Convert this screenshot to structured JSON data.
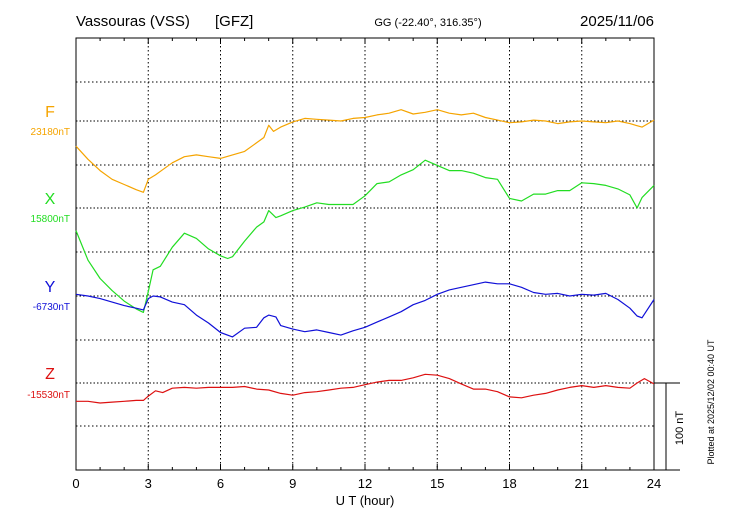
{
  "header": {
    "station": "Vassouras (VSS)",
    "institute": "[GFZ]",
    "coords": "GG (-22.40°, 316.35°)",
    "date": "2025/11/06"
  },
  "plotted_note": "Plotted at 2025/12/02 00:40 UT",
  "scale_label": "100 nT",
  "chart_data": {
    "type": "line",
    "xlabel": "U T (hour)",
    "xlim": [
      0,
      24
    ],
    "xticks": [
      "0",
      "3",
      "6",
      "9",
      "12",
      "15",
      "18",
      "21",
      "24"
    ],
    "scale_bar_nT": 100,
    "grid": true,
    "series": [
      {
        "name": "F",
        "baseline_label": "23180nT",
        "baseline": 23180,
        "color": "#f5a400",
        "x": [
          0,
          0.5,
          1,
          1.5,
          2,
          2.5,
          2.8,
          3,
          3.3,
          3.6,
          4,
          4.5,
          5,
          5.5,
          6,
          6.5,
          7,
          7.5,
          7.8,
          8,
          8.2,
          8.5,
          9,
          9.5,
          10,
          10.5,
          11,
          11.5,
          12,
          12.5,
          13,
          13.5,
          14,
          14.5,
          15,
          15.5,
          16,
          16.5,
          17,
          17.5,
          18,
          18.5,
          19,
          19.5,
          20,
          20.5,
          21,
          21.5,
          22,
          22.5,
          23,
          23.5,
          24
        ],
        "y": [
          23151,
          23136,
          23123,
          23113,
          23107,
          23101,
          23098,
          23113,
          23118,
          23124,
          23132,
          23139,
          23141,
          23139,
          23137,
          23141,
          23145,
          23155,
          23161,
          23175,
          23168,
          23173,
          23179,
          23183,
          23182,
          23181,
          23180,
          23183,
          23184,
          23187,
          23189,
          23193,
          23188,
          23190,
          23193,
          23189,
          23187,
          23189,
          23184,
          23181,
          23178,
          23179,
          23181,
          23180,
          23177,
          23179,
          23180,
          23179,
          23178,
          23180,
          23177,
          23173,
          23181
        ]
      },
      {
        "name": "X",
        "baseline_label": "15800nT",
        "baseline": 15800,
        "color": "#22dd22",
        "x": [
          0,
          0.5,
          1,
          1.5,
          2,
          2.5,
          2.8,
          3,
          3.2,
          3.5,
          4,
          4.5,
          5,
          5.5,
          6,
          6.3,
          6.5,
          7,
          7.5,
          7.8,
          8,
          8.3,
          8.5,
          9,
          9.5,
          10,
          10.5,
          11,
          11.5,
          12,
          12.5,
          13,
          13.5,
          14,
          14.5,
          15,
          15.5,
          16,
          16.5,
          17,
          17.5,
          18,
          18.5,
          19,
          19.5,
          20,
          20.5,
          21,
          21.5,
          22,
          22.5,
          23,
          23.3,
          23.5,
          24
        ],
        "y": [
          15774,
          15740,
          15719,
          15705,
          15693,
          15684,
          15680,
          15704,
          15729,
          15733,
          15755,
          15771,
          15765,
          15753,
          15745,
          15742,
          15744,
          15762,
          15778,
          15784,
          15797,
          15789,
          15791,
          15797,
          15801,
          15806,
          15804,
          15804,
          15804,
          15814,
          15828,
          15830,
          15838,
          15844,
          15855,
          15849,
          15843,
          15843,
          15840,
          15835,
          15833,
          15811,
          15808,
          15816,
          15816,
          15820,
          15820,
          15829,
          15828,
          15826,
          15822,
          15815,
          15800,
          15812,
          15826
        ]
      },
      {
        "name": "Y",
        "baseline_label": "-6730nT",
        "baseline": -6730,
        "color": "#1010d8",
        "x": [
          0,
          0.5,
          1,
          1.5,
          2,
          2.5,
          2.8,
          3,
          3.2,
          3.5,
          4,
          4.5,
          5,
          5.5,
          6,
          6.5,
          7,
          7.5,
          7.8,
          8,
          8.3,
          8.5,
          9,
          9.5,
          10,
          10.5,
          11,
          11.5,
          12,
          12.5,
          13,
          13.5,
          14,
          14.5,
          15,
          15.5,
          16,
          16.5,
          17,
          17.5,
          18,
          18.5,
          19,
          19.5,
          20,
          20.5,
          21,
          21.5,
          22,
          22.5,
          23,
          23.3,
          23.5,
          24
        ],
        "y": [
          -6728,
          -6730,
          -6733,
          -6737,
          -6741,
          -6744,
          -6746,
          -6733,
          -6730,
          -6731,
          -6737,
          -6740,
          -6752,
          -6761,
          -6772,
          -6777,
          -6767,
          -6766,
          -6755,
          -6752,
          -6754,
          -6764,
          -6768,
          -6771,
          -6769,
          -6772,
          -6775,
          -6770,
          -6766,
          -6760,
          -6754,
          -6748,
          -6740,
          -6735,
          -6728,
          -6723,
          -6720,
          -6717,
          -6714,
          -6716,
          -6716,
          -6720,
          -6726,
          -6728,
          -6727,
          -6730,
          -6728,
          -6729,
          -6727,
          -6734,
          -6744,
          -6753,
          -6755,
          -6734
        ]
      },
      {
        "name": "Z",
        "baseline_label": "-15530nT",
        "baseline": -15530,
        "color": "#dd1111",
        "x": [
          0,
          0.5,
          1,
          1.5,
          2,
          2.5,
          2.8,
          3,
          3.3,
          3.6,
          4,
          4.5,
          5,
          5.5,
          6,
          6.5,
          7,
          7.5,
          8,
          8.5,
          9,
          9.5,
          10,
          10.5,
          11,
          11.5,
          12,
          12.5,
          13,
          13.5,
          14,
          14.5,
          15,
          15.5,
          16,
          16.5,
          17,
          17.5,
          18,
          18.5,
          19,
          19.5,
          20,
          20.5,
          21,
          21.5,
          22,
          22.5,
          23,
          23.3,
          23.6,
          24
        ],
        "y": [
          -15551,
          -15551,
          -15553,
          -15552,
          -15551,
          -15550,
          -15550,
          -15545,
          -15539,
          -15541,
          -15536,
          -15535,
          -15536,
          -15535,
          -15535,
          -15535,
          -15534,
          -15537,
          -15538,
          -15542,
          -15544,
          -15541,
          -15540,
          -15538,
          -15536,
          -15535,
          -15532,
          -15529,
          -15527,
          -15527,
          -15524,
          -15520,
          -15521,
          -15525,
          -15531,
          -15537,
          -15537,
          -15540,
          -15546,
          -15547,
          -15544,
          -15542,
          -15538,
          -15535,
          -15533,
          -15535,
          -15533,
          -15535,
          -15536,
          -15530,
          -15525,
          -15531
        ]
      }
    ]
  }
}
